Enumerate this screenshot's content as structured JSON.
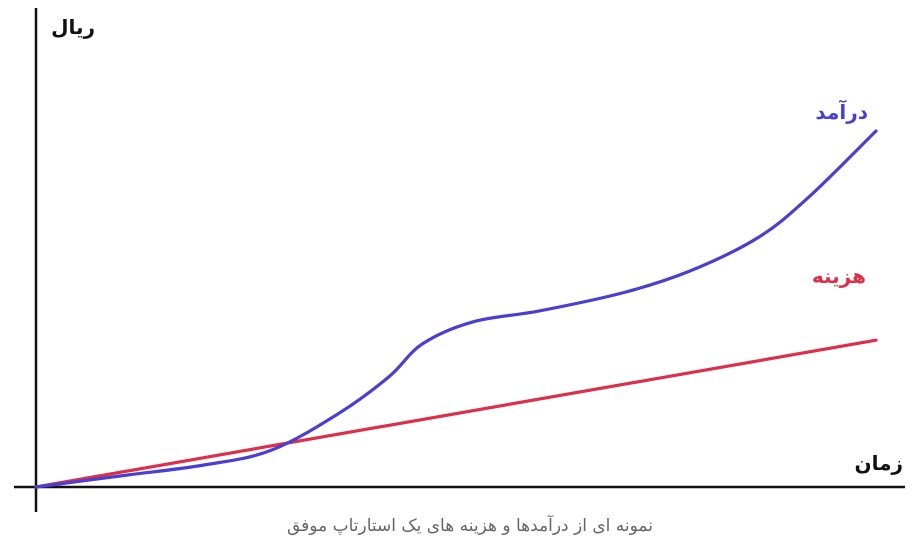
{
  "chart_data": {
    "type": "line",
    "caption": "نمونه ای از درآمدها و هزینه های یک استارتاپ موفق",
    "xlabel": "زمان",
    "ylabel": "ریال",
    "grid": false,
    "legend": "inline-labels",
    "xlim": [
      0,
      100
    ],
    "ylim": [
      0,
      100
    ],
    "series": [
      {
        "name": "درآمد",
        "color": "#4a3fd0",
        "x": [
          0,
          10,
          20,
          28,
          36,
          42,
          46,
          52,
          60,
          70,
          78,
          86,
          92,
          100
        ],
        "y": [
          0,
          3,
          6,
          10,
          20,
          30,
          39,
          45,
          48,
          53,
          59,
          68,
          79,
          97
        ]
      },
      {
        "name": "هزینه",
        "color": "#dc2f4a",
        "x": [
          0,
          100
        ],
        "y": [
          0,
          40
        ]
      }
    ]
  }
}
